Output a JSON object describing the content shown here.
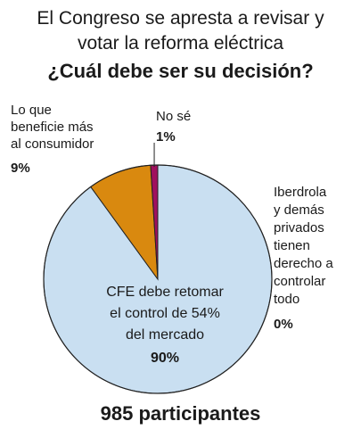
{
  "header": {
    "title_line1": "El Congreso se apresta a revisar y",
    "title_line2": "votar la reforma eléctrica",
    "question": "¿Cuál debe ser su decisión?"
  },
  "footer": {
    "participants": "985 participantes"
  },
  "chart_data": {
    "type": "pie",
    "title": "¿Cuál debe ser su decisión?",
    "slices": [
      {
        "label_lines": [
          "CFE debe retomar",
          "el control de 54%",
          "del mercado"
        ],
        "value": 90,
        "value_label": "90%",
        "color": "#c9dff1"
      },
      {
        "label_lines": [
          "Iberdrola",
          "y demás",
          "privados",
          "tienen",
          "derecho a",
          "controlar",
          "todo"
        ],
        "value": 0,
        "value_label": "0%",
        "color": "#ffffff"
      },
      {
        "label_lines": [
          "Lo que",
          "beneficie más",
          "al consumidor"
        ],
        "value": 9,
        "value_label": "9%",
        "color": "#d9890f"
      },
      {
        "label_lines": [
          "No sé"
        ],
        "value": 1,
        "value_label": "1%",
        "color": "#a0115e"
      }
    ],
    "total_label": "985 participantes",
    "legend": "none"
  }
}
